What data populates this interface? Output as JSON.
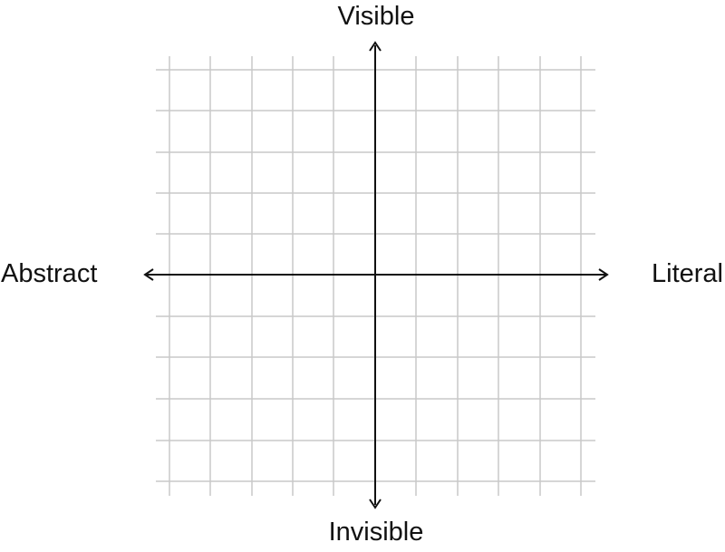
{
  "diagram": {
    "type": "quadrant-axes",
    "grid": true,
    "grid_color": "#c9c9c9",
    "axis_color": "#111111",
    "labels": {
      "top": "Visible",
      "bottom": "Invisible",
      "left": "Abstract",
      "right": "Literal"
    }
  }
}
